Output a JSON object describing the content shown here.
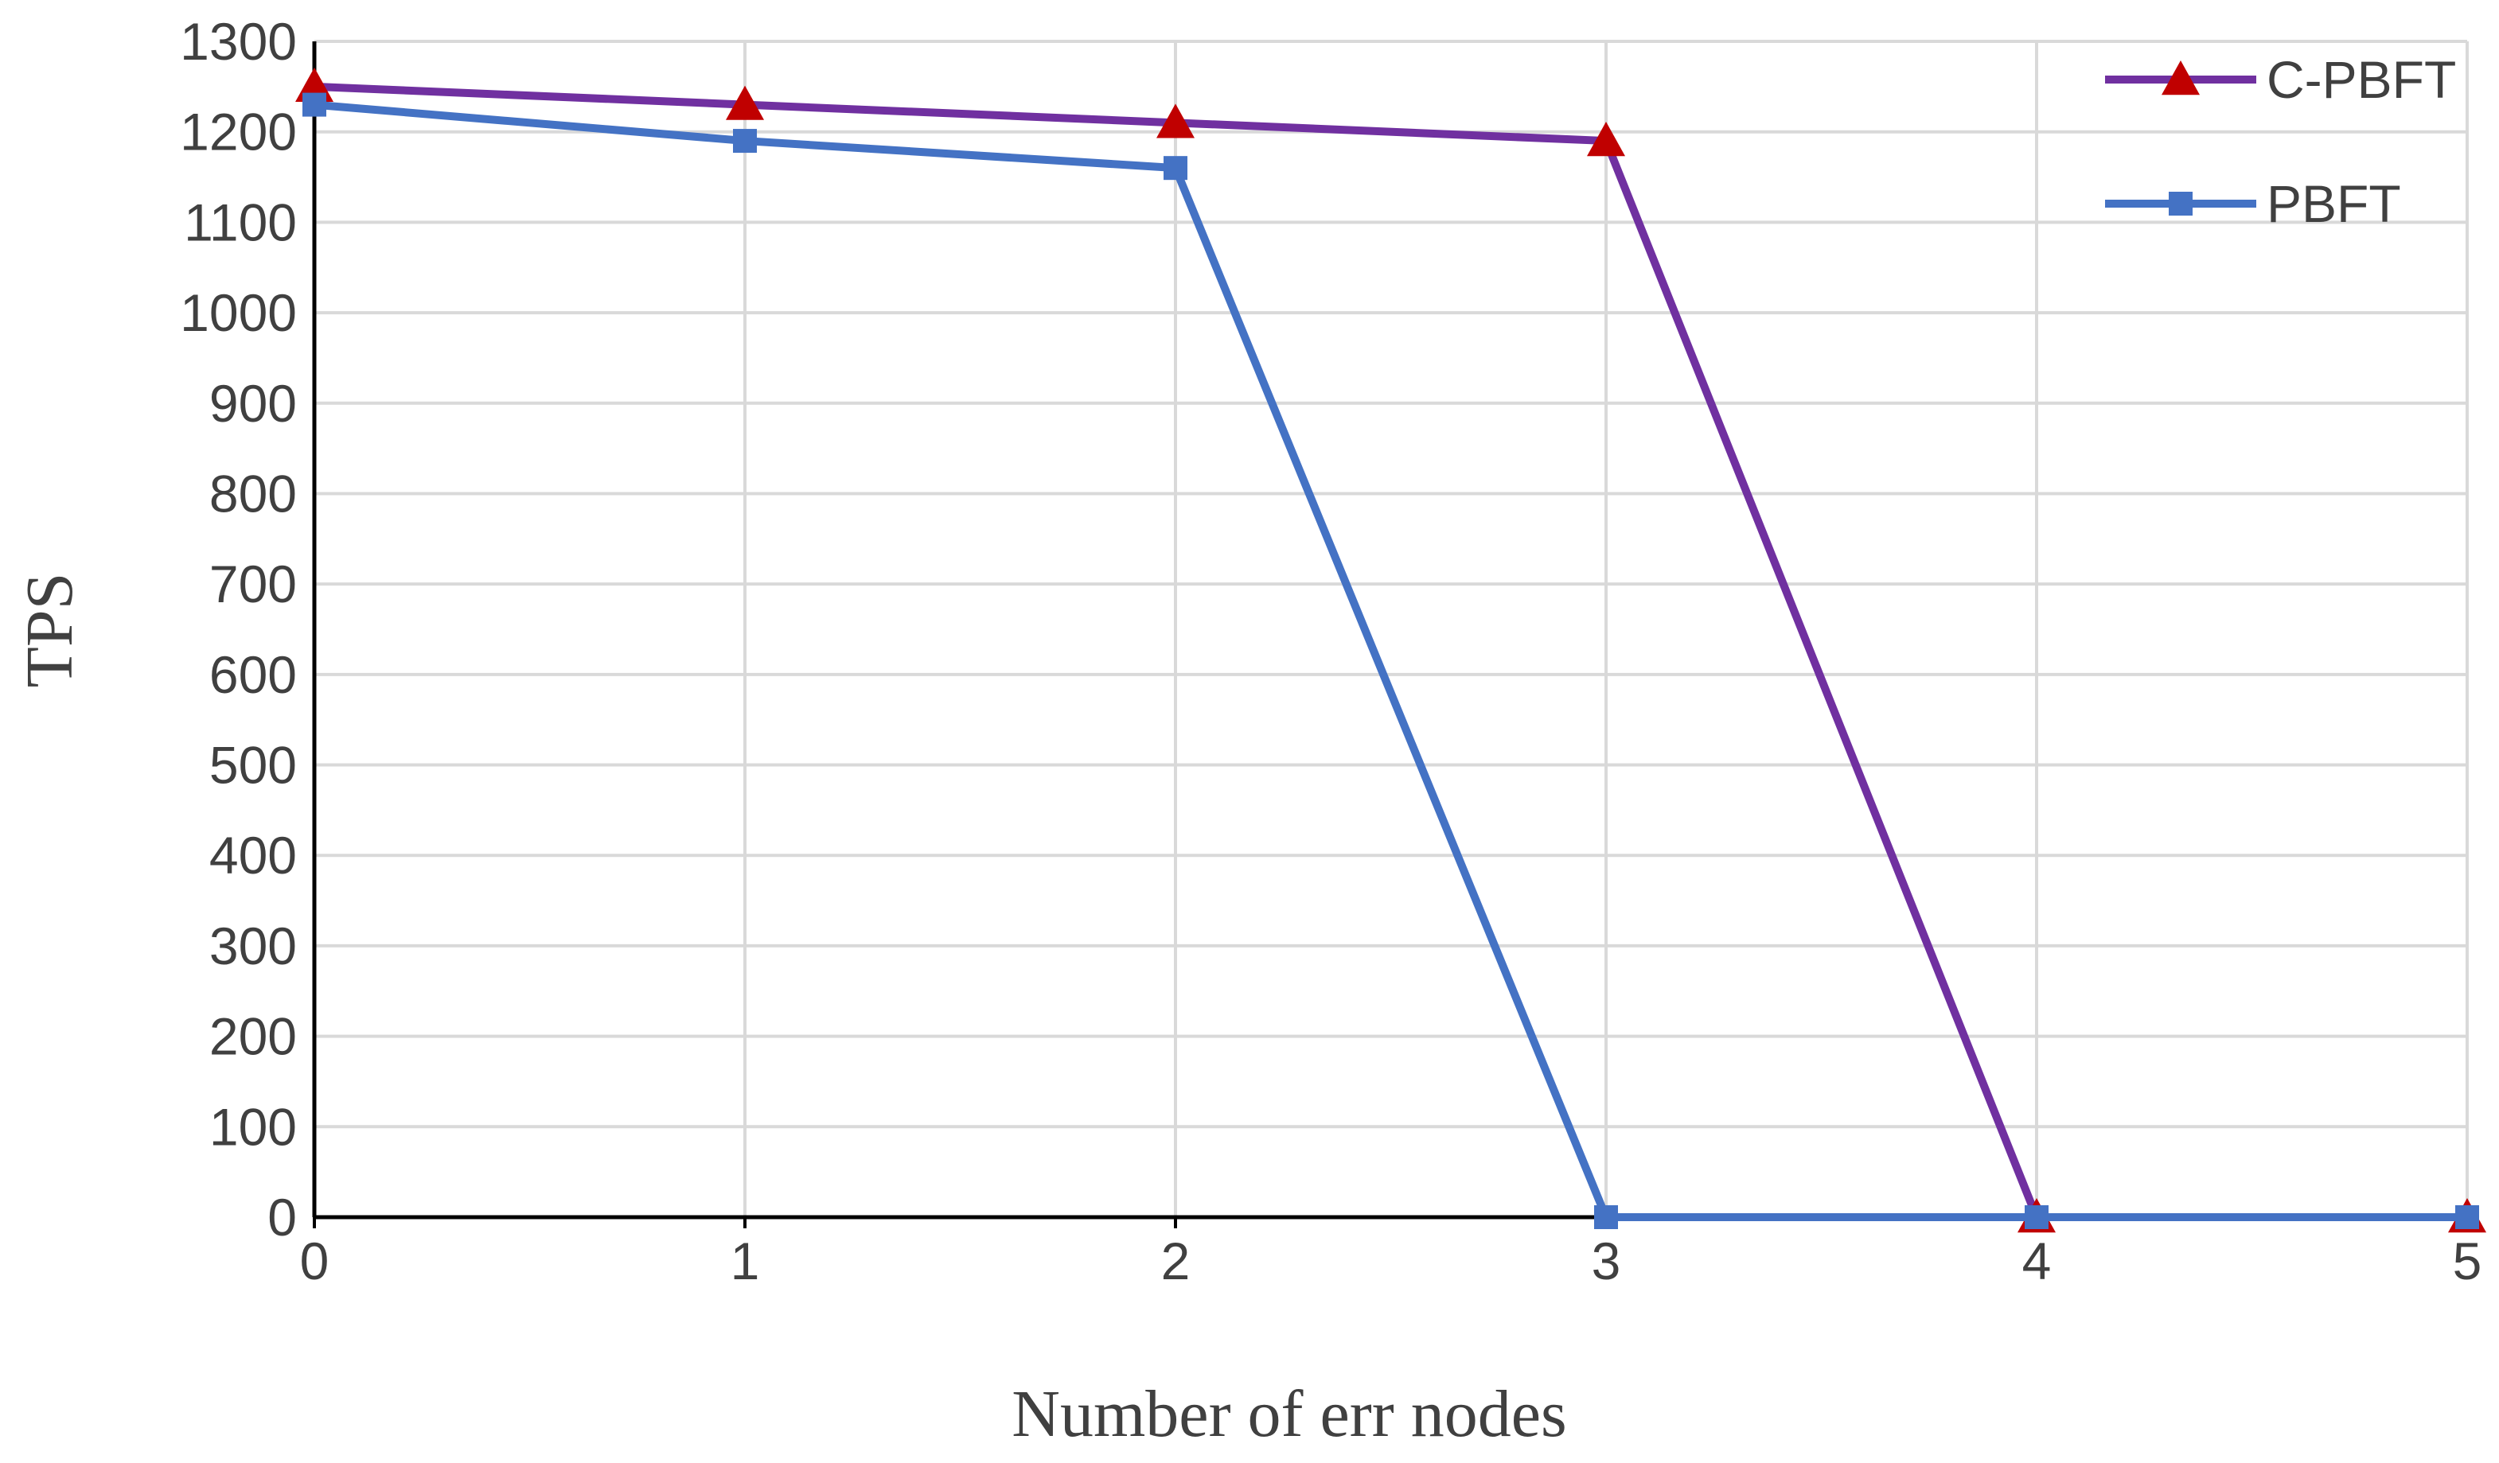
{
  "chart_data": {
    "type": "line",
    "title": "",
    "xlabel": "Number of err nodes",
    "ylabel": "TPS",
    "x": [
      0,
      1,
      2,
      3,
      4,
      5
    ],
    "xlim": [
      0,
      5
    ],
    "ylim": [
      0,
      1300
    ],
    "yticks": [
      0,
      100,
      200,
      300,
      400,
      500,
      600,
      700,
      800,
      900,
      1000,
      1100,
      1200,
      1300
    ],
    "grid": true,
    "legend_position": "top-right",
    "series": [
      {
        "name": "C-PBFT",
        "values": [
          1250,
          1230,
          1210,
          1190,
          0,
          0
        ],
        "line_color": "#7030A0",
        "marker": "triangle",
        "marker_color": "#C00000"
      },
      {
        "name": "PBFT",
        "values": [
          1230,
          1190,
          1160,
          0,
          0,
          0
        ],
        "line_color": "#4472C4",
        "marker": "square",
        "marker_color": "#4472C4"
      }
    ]
  }
}
